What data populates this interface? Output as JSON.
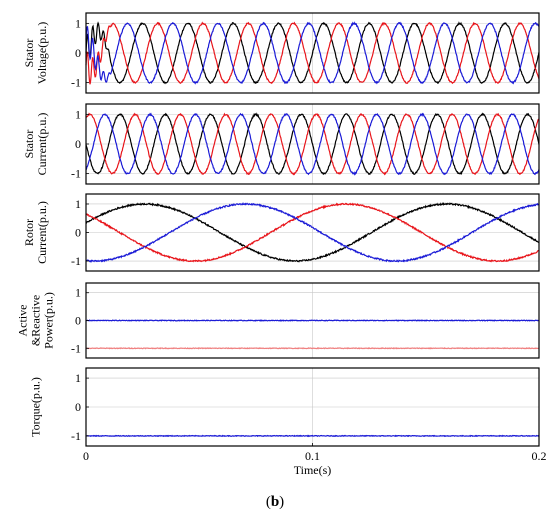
{
  "caption": {
    "open": "(",
    "label": "b",
    "close": ")"
  },
  "x_axis": {
    "label": "Time(s)",
    "ticks": [
      "0",
      "0.1",
      "0.2"
    ],
    "range": [
      0,
      0.2
    ]
  },
  "colors": {
    "phase_a": "#000000",
    "phase_b": "#e8151b",
    "phase_c": "#1b1bd6",
    "reactive": "#f08080",
    "grid": "#c8c8c8",
    "frame": "#000000"
  },
  "chart_data": [
    {
      "type": "line",
      "ylabel_lines": [
        "Stator",
        "Voltage(p.u.)"
      ],
      "yticks": [
        "1",
        "0",
        "-1"
      ],
      "ylim": [
        -1.35,
        1.35
      ],
      "grid": true,
      "signal": {
        "kind": "three_phase",
        "freq_hz": 50,
        "amplitude": 1.0,
        "transient_until_s": 0.012,
        "phase_offsets_deg": {
          "black": 0,
          "red": -120,
          "blue": 120
        }
      },
      "series": [
        {
          "color": "black"
        },
        {
          "color": "red"
        },
        {
          "color": "blue"
        }
      ]
    },
    {
      "type": "line",
      "ylabel_lines": [
        "Stator",
        "Current(p.u.)"
      ],
      "yticks": [
        "1",
        "0",
        "-1"
      ],
      "ylim": [
        -1.35,
        1.35
      ],
      "grid": true,
      "signal": {
        "kind": "three_phase",
        "freq_hz": 50,
        "amplitude": 1.0,
        "phase_offsets_deg": {
          "black": 180,
          "red": 60,
          "blue": -60
        }
      },
      "series": [
        {
          "color": "black"
        },
        {
          "color": "red"
        },
        {
          "color": "blue"
        }
      ]
    },
    {
      "type": "line",
      "ylabel_lines": [
        "Rotor",
        "Current(p.u.)"
      ],
      "yticks": [
        "1",
        "0",
        "-1"
      ],
      "ylim": [
        -1.35,
        1.35
      ],
      "grid": true,
      "signal": {
        "kind": "three_phase",
        "freq_hz": 7.5,
        "amplitude": 1.0,
        "phase_offsets_deg": {
          "black": 20,
          "red": 140,
          "blue": -100
        }
      },
      "series": [
        {
          "color": "black"
        },
        {
          "color": "red"
        },
        {
          "color": "blue"
        }
      ]
    },
    {
      "type": "line",
      "ylabel_lines": [
        "Active",
        "&Reactive",
        "Power(p.u.)"
      ],
      "yticks": [
        "1",
        "0",
        "-1"
      ],
      "ylim": [
        -1.35,
        1.35
      ],
      "grid": true,
      "signal": {
        "kind": "constant"
      },
      "series": [
        {
          "color": "blue",
          "value": 0.0
        },
        {
          "color": "pink",
          "value": -1.0
        }
      ]
    },
    {
      "type": "line",
      "ylabel_lines": [
        "Torque(p.u.)"
      ],
      "yticks": [
        "1",
        "0",
        "-1"
      ],
      "ylim": [
        -1.35,
        1.35
      ],
      "grid": true,
      "signal": {
        "kind": "constant"
      },
      "series": [
        {
          "color": "blue",
          "value": -1.0
        }
      ]
    }
  ]
}
